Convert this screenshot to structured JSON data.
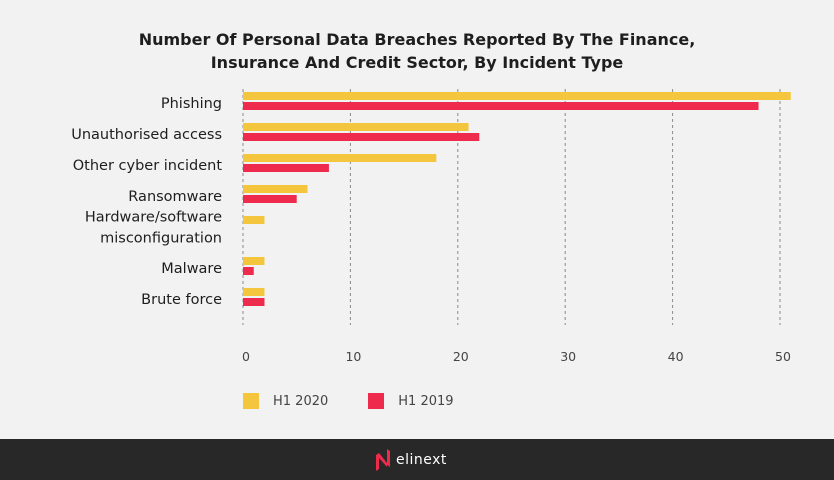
{
  "chart_data": {
    "type": "bar",
    "orientation": "horizontal",
    "title": "Number Of Personal Data Breaches Reported By The Finance, Insurance And Credit Sector, By Incident Type",
    "title_lines": [
      "Number Of Personal Data Breaches Reported By The Finance,",
      "Insurance And Credit Sector, By Incident Type"
    ],
    "categories": [
      "Phishing",
      "Unauthorised access",
      "Other cyber incident",
      "Ransomware",
      "Hardware/software misconfiguration",
      "Malware",
      "Brute force"
    ],
    "category_lines": [
      [
        "Phishing"
      ],
      [
        "Unauthorised access"
      ],
      [
        "Other cyber incident"
      ],
      [
        "Ransomware"
      ],
      [
        "Hardware/software",
        "misconfiguration"
      ],
      [
        "Malware"
      ],
      [
        "Brute force"
      ]
    ],
    "series": [
      {
        "name": "H1 2020",
        "color": "#f4c63d",
        "values": [
          51,
          21,
          18,
          6,
          2,
          2,
          2
        ]
      },
      {
        "name": "H1 2019",
        "color": "#ee2a4d",
        "values": [
          48,
          22,
          8,
          5,
          0,
          1,
          2
        ]
      }
    ],
    "xlabel": "",
    "ylabel": "",
    "xlim": [
      0,
      50
    ],
    "xticks": [
      "0",
      "10",
      "20",
      "30",
      "40",
      "50"
    ],
    "grid": true,
    "legend_position": "bottom-left"
  },
  "footer": {
    "brand": "elinext"
  }
}
